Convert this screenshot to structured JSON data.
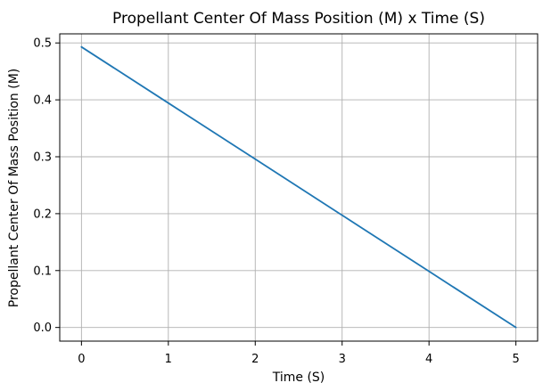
{
  "chart_data": {
    "type": "line",
    "title": "Propellant Center Of Mass Position (M) x Time (S)",
    "xlabel": "Time (S)",
    "ylabel": "Propellant Center Of Mass Position (M)",
    "xlim": [
      -0.25,
      5.25
    ],
    "ylim": [
      -0.024,
      0.516
    ],
    "xticks": [
      0,
      1,
      2,
      3,
      4,
      5
    ],
    "xtick_labels": [
      "0",
      "1",
      "2",
      "3",
      "4",
      "5"
    ],
    "yticks": [
      0.0,
      0.1,
      0.2,
      0.3,
      0.4,
      0.5
    ],
    "ytick_labels": [
      "0.0",
      "0.1",
      "0.2",
      "0.3",
      "0.4",
      "0.5"
    ],
    "grid": true,
    "series": [
      {
        "name": "Propellant Center Of Mass Position",
        "color": "#1f77b4",
        "x": [
          0,
          1,
          2,
          3,
          4,
          5
        ],
        "y": [
          0.493,
          0.3944,
          0.2958,
          0.1972,
          0.0986,
          0.0
        ]
      }
    ]
  }
}
